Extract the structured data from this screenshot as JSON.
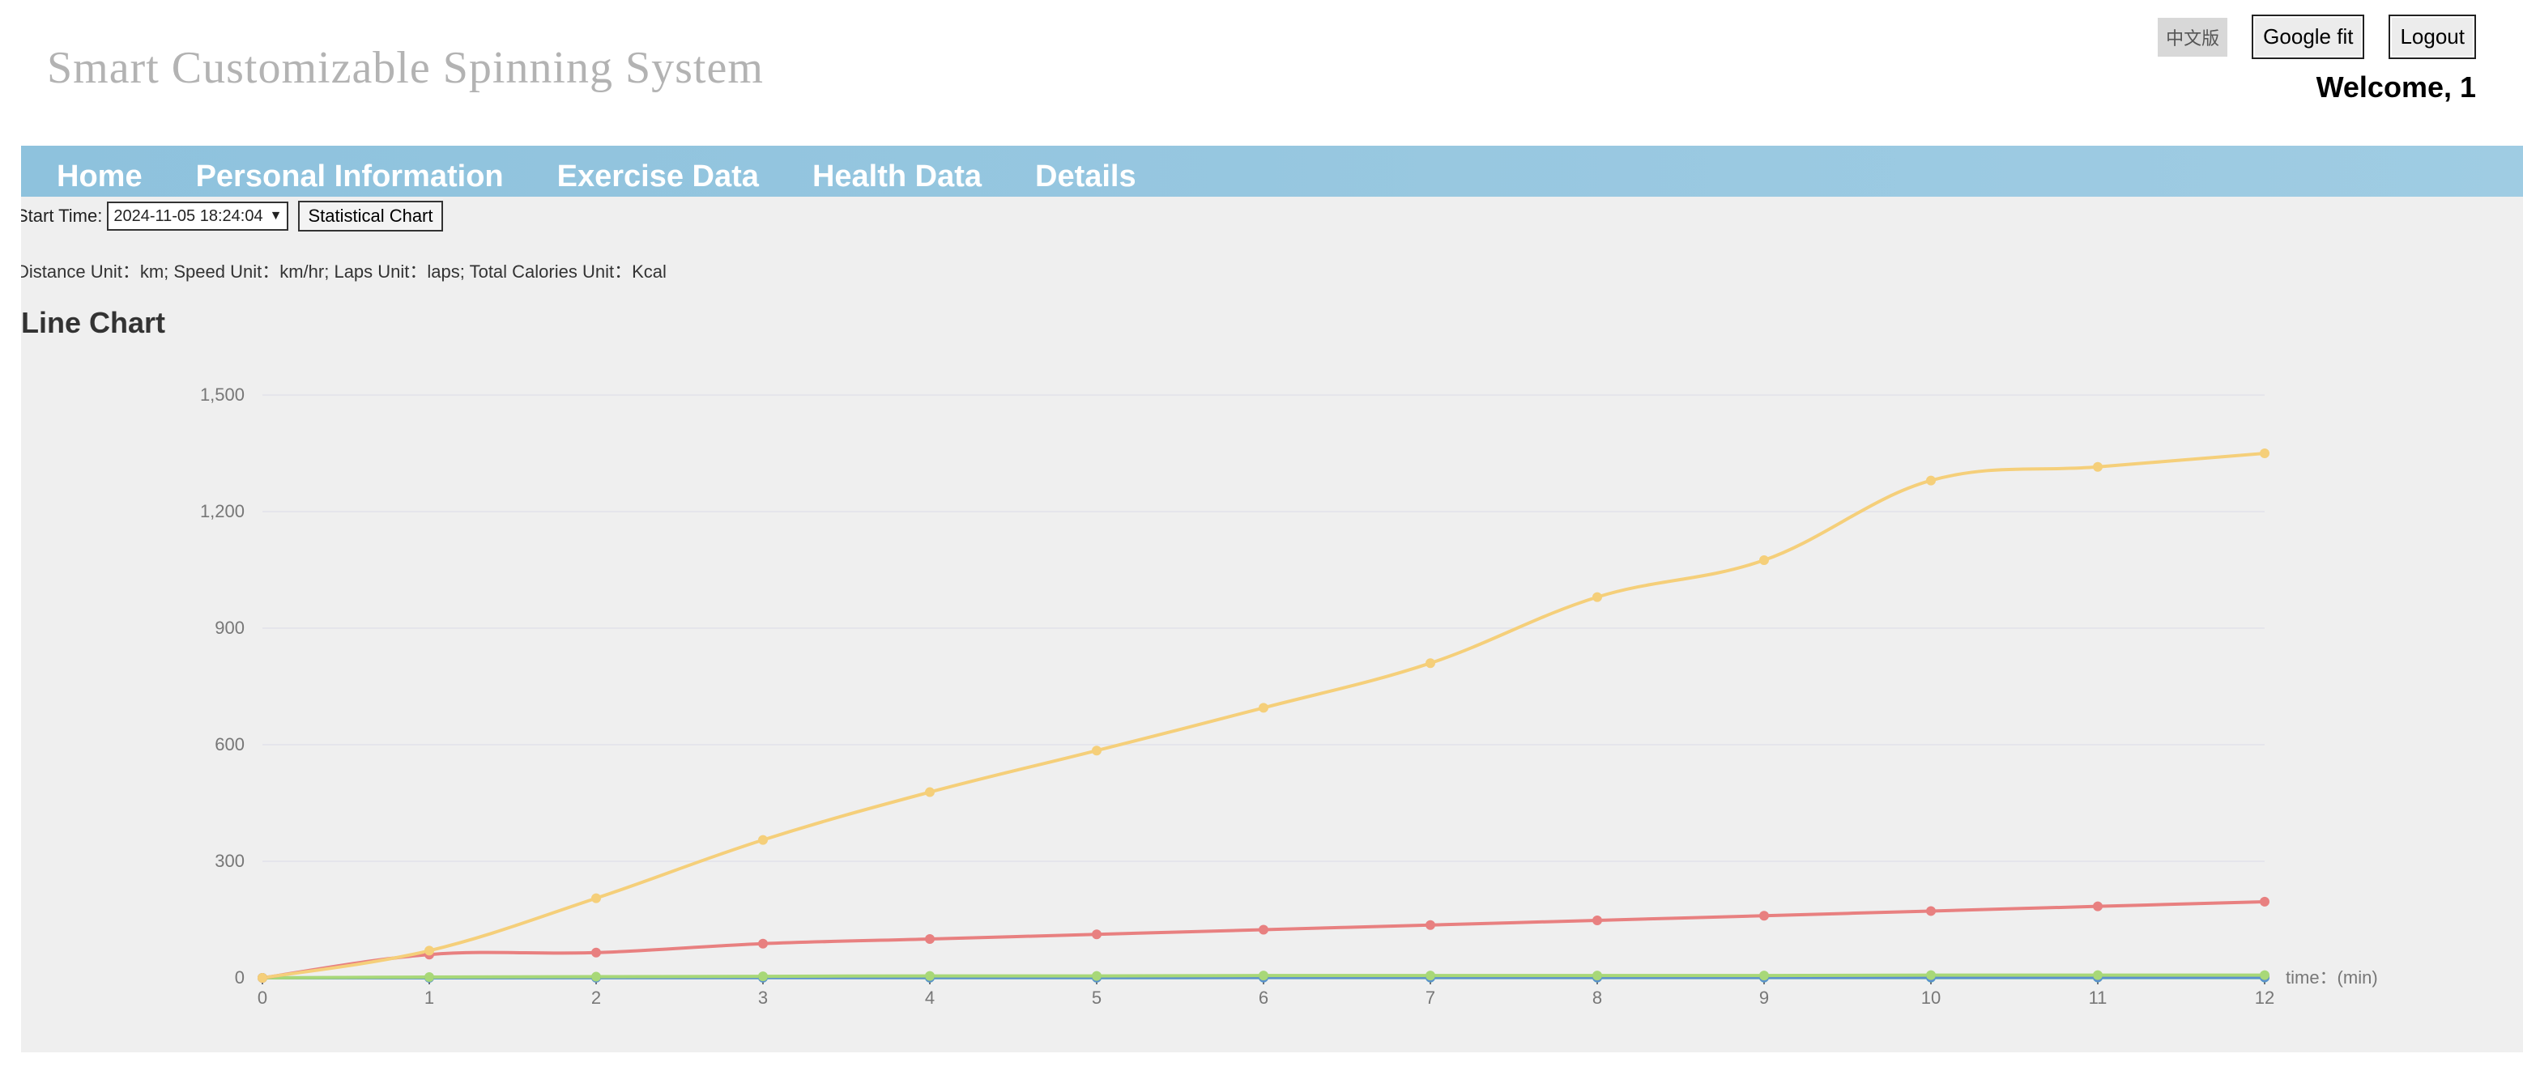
{
  "header": {
    "title": "Smart Customizable Spinning System",
    "lang_button": "中文版",
    "google_fit_button": "Google fit",
    "logout_button": "Logout",
    "welcome": "Welcome, 1"
  },
  "nav": {
    "items": [
      "Home",
      "Personal Information",
      "Exercise Data",
      "Health Data",
      "Details"
    ]
  },
  "controls": {
    "start_time_label": "Start Time:",
    "start_time_value": "2024-11-05 18:24:04",
    "statistical_chart_button": "Statistical Chart",
    "units_text": "Distance Unit：km; Speed Unit：km/hr; Laps Unit：laps; Total Calories Unit：Kcal"
  },
  "chart_heading": "Line Chart",
  "chart_data": {
    "type": "line",
    "x": [
      0,
      1,
      2,
      3,
      4,
      5,
      6,
      7,
      8,
      9,
      10,
      11,
      12
    ],
    "xlabel": "time：(min)",
    "ylim": [
      0,
      1500
    ],
    "yticks": [
      0,
      300,
      600,
      900,
      1200,
      1500
    ],
    "ytick_labels": [
      "0",
      "300",
      "600",
      "900",
      "1,200",
      "1,500"
    ],
    "grid": true,
    "smooth": true,
    "series": [
      {
        "color": "#f5cf7a",
        "values": [
          0,
          70,
          205,
          355,
          478,
          585,
          695,
          810,
          980,
          1075,
          1280,
          1315,
          1350
        ]
      },
      {
        "color": "#e88080",
        "values": [
          0,
          60,
          65,
          88,
          100,
          112,
          124,
          136,
          148,
          160,
          172,
          184,
          196
        ]
      },
      {
        "color": "#a8d878",
        "values": [
          0,
          2,
          3,
          4,
          5,
          5,
          6,
          6,
          6,
          6,
          7,
          7,
          7
        ]
      },
      {
        "color": "#5b8fd0",
        "values": [
          0,
          0.5,
          0.8,
          1,
          1.2,
          1.3,
          1.4,
          1.5,
          1.6,
          1.6,
          1.7,
          1.7,
          1.8
        ]
      },
      {
        "color": "#4aa8a8",
        "values": [
          0,
          0.3,
          0.4,
          0.5,
          0.6,
          0.6,
          0.7,
          0.7,
          0.8,
          0.8,
          0.8,
          0.9,
          0.9
        ]
      }
    ]
  }
}
